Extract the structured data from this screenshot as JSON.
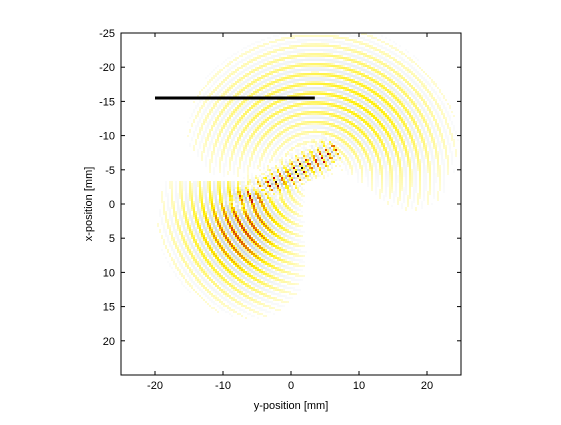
{
  "chart_data": {
    "type": "heatmap",
    "title": "",
    "xlabel": "y-position [mm]",
    "ylabel": "x-position [mm]",
    "xlim": [
      -25,
      25
    ],
    "ylim": [
      -25,
      25
    ],
    "y_axis_reversed": true,
    "x_ticks": [
      "-20",
      "-10",
      "0",
      "10",
      "20"
    ],
    "x_tick_values": [
      -20,
      -10,
      0,
      10,
      20
    ],
    "y_ticks": [
      "-25",
      "-20",
      "-15",
      "-10",
      "-5",
      "0",
      "5",
      "10",
      "15",
      "20"
    ],
    "y_tick_values": [
      -25,
      -20,
      -15,
      -10,
      -5,
      0,
      5,
      10,
      15,
      20
    ],
    "grid": false,
    "colormap": "hot-to-gray diverging (black, red, yellow, white, light gray)",
    "colors": {
      "positive_high": "#000000",
      "positive_mid": "#cc0000",
      "positive_low": "#ffee00",
      "zero": "#ffffff",
      "negative": "#9fb3bf"
    },
    "annotations": [
      {
        "type": "line",
        "color": "#000000",
        "x": [
          -20,
          3.5
        ],
        "y": [
          -15.5,
          -15.5
        ]
      }
    ],
    "wave_field": {
      "description_units": "mm",
      "beam_start": [
        -8,
        0
      ],
      "beam_end": [
        4,
        -6.5
      ],
      "wavelength": 1.1
    }
  }
}
